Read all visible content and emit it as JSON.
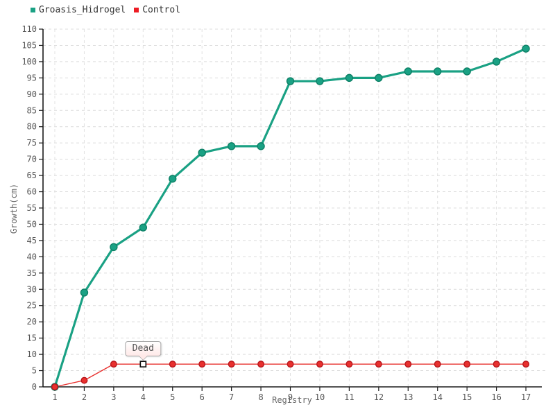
{
  "legend": {
    "items": [
      {
        "label": "Groasis_Hidrogel",
        "color": "#1aa184"
      },
      {
        "label": "Control",
        "color": "#ed1c24"
      }
    ]
  },
  "tooltip": {
    "label": "Dead"
  },
  "chart_data": {
    "type": "line",
    "x": [
      1,
      2,
      3,
      4,
      5,
      6,
      7,
      8,
      9,
      10,
      11,
      12,
      13,
      14,
      15,
      16,
      17
    ],
    "xlabel": "Registry",
    "ylabel": "Growth(cm)",
    "ylim": [
      0,
      110
    ],
    "y_tick_step": 5,
    "grid": true,
    "legend_position": "top-left",
    "series": [
      {
        "name": "Groasis_Hidrogel",
        "color": "#1aa184",
        "marker_stroke": "#0d8066",
        "line_width": 3.2,
        "marker_radius": 5,
        "values": [
          0,
          29,
          43,
          49,
          64,
          72,
          74,
          74,
          94,
          94,
          95,
          95,
          97,
          97,
          97,
          100,
          104
        ]
      },
      {
        "name": "Control",
        "color": "#e8302e",
        "marker_stroke": "#b7151b",
        "line_width": 1.4,
        "marker_radius": 4.3,
        "values": [
          0,
          2,
          7,
          7,
          7,
          7,
          7,
          7,
          7,
          7,
          7,
          7,
          7,
          7,
          7,
          7,
          7
        ]
      }
    ],
    "annotations": [
      {
        "text": "Dead",
        "series": "Control",
        "x": 4,
        "y": 7,
        "marker": "hollow-square"
      }
    ]
  }
}
